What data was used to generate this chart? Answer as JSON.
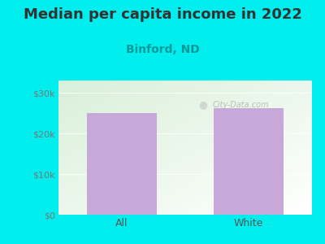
{
  "title": "Median per capita income in 2022",
  "subtitle": "Binford, ND",
  "categories": [
    "All",
    "White"
  ],
  "values": [
    25000,
    26200
  ],
  "bar_color": "#c8a8d8",
  "background_color": "#00EEEE",
  "title_fontsize": 13,
  "subtitle_fontsize": 10,
  "ylabel_ticks": [
    0,
    10000,
    20000,
    30000
  ],
  "ylabel_labels": [
    "$0",
    "$10k",
    "$20k",
    "$30k"
  ],
  "tick_color": "#777777",
  "subtitle_color": "#009999",
  "title_color": "#333333",
  "xtick_color": "#555555",
  "watermark": "City-Data.com",
  "ylim": [
    0,
    33000
  ],
  "bar_width": 0.55
}
